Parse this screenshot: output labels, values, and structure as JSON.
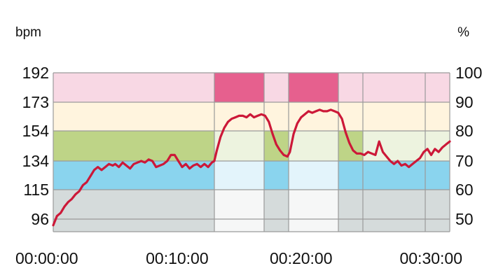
{
  "chart_data": {
    "type": "line",
    "title": "",
    "xlabel": "",
    "ylabel_left": "bpm",
    "ylabel_right": "%",
    "x_unit": "minutes",
    "xlim": [
      0,
      32
    ],
    "x_ticks": [
      {
        "value": 0,
        "label": "00:00:00"
      },
      {
        "value": 10,
        "label": "00:10:00"
      },
      {
        "value": 20,
        "label": "00:20:00"
      },
      {
        "value": 30,
        "label": "00:30:00"
      }
    ],
    "ylim": [
      92,
      192
    ],
    "y_ticks_left": [
      "192",
      "173",
      "154",
      "134",
      "115",
      "96"
    ],
    "y_ticks_right": [
      "100",
      "90",
      "80",
      "70",
      "60",
      "50"
    ],
    "grid": true,
    "colors": {
      "line": "#cc1838",
      "grid": "#9a9a9a",
      "zone1_grey": "#d5dbdb",
      "zone2_blue": "#8ad4ee",
      "zone3_green": "#bed487",
      "zone4_yellow": "#ffdb6e",
      "zone5_pink": "#e6608e"
    },
    "zones": [
      {
        "min_bpm": 96,
        "max_bpm": 115
      },
      {
        "min_bpm": 115,
        "max_bpm": 134
      },
      {
        "min_bpm": 134,
        "max_bpm": 154
      },
      {
        "min_bpm": 154,
        "max_bpm": 173
      },
      {
        "min_bpm": 173,
        "max_bpm": 192
      }
    ],
    "segments": [
      {
        "x_start": 0,
        "x_end": 13,
        "zone": 2
      },
      {
        "x_start": 13,
        "x_end": 17,
        "zone": 4
      },
      {
        "x_start": 17,
        "x_end": 19,
        "zone": 2
      },
      {
        "x_start": 19,
        "x_end": 23,
        "zone": 4
      },
      {
        "x_start": 23,
        "x_end": 25,
        "zone": 2
      },
      {
        "x_start": 25,
        "x_end": 30,
        "zone": 1
      },
      {
        "x_start": 30,
        "x_end": 32,
        "zone": 1
      }
    ],
    "series": [
      {
        "values_bpm": [
          [
            0,
            92
          ],
          [
            0.3,
            98
          ],
          [
            0.6,
            100
          ],
          [
            0.9,
            104
          ],
          [
            1.2,
            107
          ],
          [
            1.5,
            109
          ],
          [
            1.8,
            112
          ],
          [
            2.1,
            114
          ],
          [
            2.4,
            118
          ],
          [
            2.7,
            120
          ],
          [
            3.0,
            124
          ],
          [
            3.3,
            128
          ],
          [
            3.6,
            130
          ],
          [
            3.9,
            128
          ],
          [
            4.2,
            130
          ],
          [
            4.5,
            132
          ],
          [
            4.8,
            131
          ],
          [
            5.0,
            132
          ],
          [
            5.3,
            130
          ],
          [
            5.6,
            133
          ],
          [
            5.9,
            131
          ],
          [
            6.2,
            129
          ],
          [
            6.5,
            132
          ],
          [
            6.8,
            133
          ],
          [
            7.1,
            134
          ],
          [
            7.4,
            133
          ],
          [
            7.7,
            135
          ],
          [
            8.0,
            134
          ],
          [
            8.3,
            130
          ],
          [
            8.6,
            131
          ],
          [
            8.9,
            132
          ],
          [
            9.2,
            134
          ],
          [
            9.5,
            138
          ],
          [
            9.8,
            138
          ],
          [
            10.1,
            134
          ],
          [
            10.4,
            130
          ],
          [
            10.7,
            132
          ],
          [
            11.0,
            129
          ],
          [
            11.3,
            131
          ],
          [
            11.6,
            132
          ],
          [
            11.9,
            130
          ],
          [
            12.2,
            132
          ],
          [
            12.5,
            130
          ],
          [
            12.8,
            133
          ],
          [
            13.0,
            134
          ],
          [
            13.2,
            141
          ],
          [
            13.5,
            150
          ],
          [
            13.8,
            156
          ],
          [
            14.1,
            160
          ],
          [
            14.4,
            162
          ],
          [
            14.7,
            163
          ],
          [
            15.0,
            164
          ],
          [
            15.3,
            164
          ],
          [
            15.6,
            163
          ],
          [
            15.9,
            165
          ],
          [
            16.2,
            163
          ],
          [
            16.5,
            164
          ],
          [
            16.8,
            165
          ],
          [
            17.1,
            164
          ],
          [
            17.4,
            160
          ],
          [
            17.7,
            152
          ],
          [
            18.0,
            145
          ],
          [
            18.3,
            141
          ],
          [
            18.6,
            138
          ],
          [
            18.9,
            137
          ],
          [
            19.1,
            140
          ],
          [
            19.4,
            152
          ],
          [
            19.7,
            159
          ],
          [
            20.0,
            163
          ],
          [
            20.3,
            165
          ],
          [
            20.6,
            167
          ],
          [
            20.9,
            166
          ],
          [
            21.2,
            167
          ],
          [
            21.5,
            168
          ],
          [
            21.8,
            167
          ],
          [
            22.1,
            167
          ],
          [
            22.4,
            168
          ],
          [
            22.7,
            167
          ],
          [
            23.0,
            166
          ],
          [
            23.3,
            162
          ],
          [
            23.6,
            153
          ],
          [
            23.9,
            146
          ],
          [
            24.2,
            141
          ],
          [
            24.5,
            139
          ],
          [
            24.8,
            139
          ],
          [
            25.1,
            138
          ],
          [
            25.4,
            140
          ],
          [
            25.7,
            139
          ],
          [
            26.0,
            138
          ],
          [
            26.3,
            147
          ],
          [
            26.6,
            140
          ],
          [
            26.9,
            137
          ],
          [
            27.2,
            134
          ],
          [
            27.5,
            132
          ],
          [
            27.8,
            134
          ],
          [
            28.1,
            131
          ],
          [
            28.4,
            132
          ],
          [
            28.7,
            130
          ],
          [
            29.0,
            132
          ],
          [
            29.3,
            134
          ],
          [
            29.6,
            136
          ],
          [
            29.9,
            140
          ],
          [
            30.2,
            142
          ],
          [
            30.5,
            138
          ],
          [
            30.8,
            142
          ],
          [
            31.1,
            140
          ],
          [
            31.4,
            143
          ],
          [
            31.7,
            145
          ],
          [
            32.0,
            147
          ]
        ]
      }
    ]
  }
}
